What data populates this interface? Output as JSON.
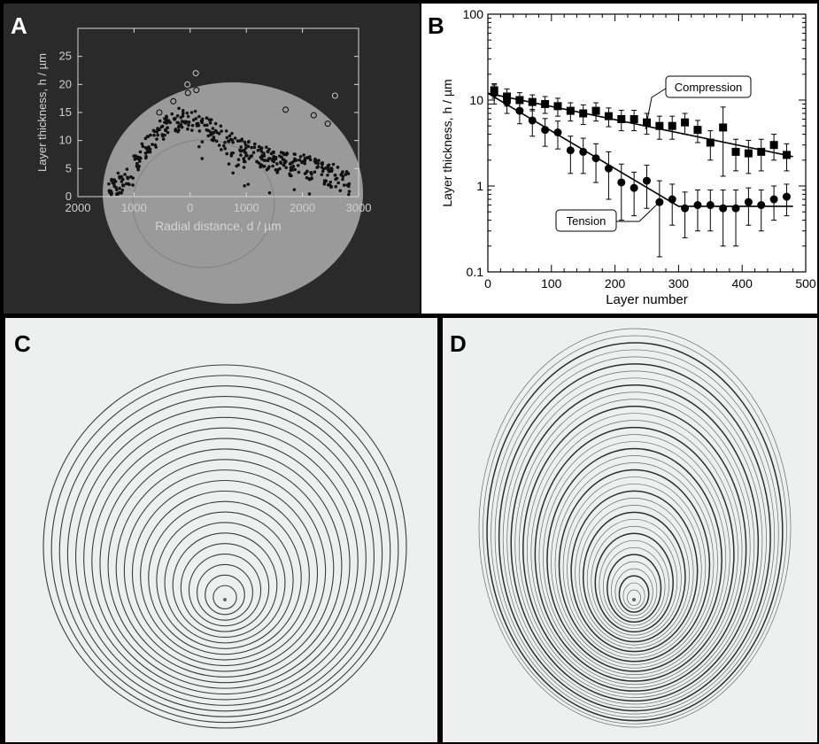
{
  "panels": {
    "a": {
      "letter": "A"
    },
    "b": {
      "letter": "B"
    },
    "c": {
      "letter": "C"
    },
    "d": {
      "letter": "D"
    }
  },
  "colors": {
    "panel_a_bg": "#2a2a2a",
    "panel_a_overlay": "#9a9a9a",
    "photo_bg": "#eef0ef",
    "ring": "#3c3c3c"
  },
  "chart_data": [
    {
      "type": "scatter",
      "panel": "A",
      "xlabel": "Radial distance, d / µm",
      "ylabel": "Layer thickness, h / µm",
      "xlim": [
        -2000,
        3000
      ],
      "ylim": [
        0,
        30
      ],
      "x_ticks": [
        -2000,
        -1000,
        0,
        1000,
        2000,
        3000
      ],
      "x_tick_labels": [
        "2000",
        "1000",
        "0",
        "1000",
        "2000",
        "3000"
      ],
      "y_ticks": [
        0,
        5,
        10,
        15,
        20,
        25
      ],
      "y_tick_labels": [
        "0",
        "5",
        "10",
        "15",
        "20",
        "25"
      ],
      "grid": false,
      "series": [
        {
          "marker": "filled",
          "trend": [
            [
              -1450,
              0.5
            ],
            [
              -1300,
              2
            ],
            [
              -1100,
              4
            ],
            [
              -900,
              7
            ],
            [
              -700,
              10
            ],
            [
              -500,
              12
            ],
            [
              -300,
              13
            ],
            [
              -150,
              14
            ],
            [
              0,
              13
            ],
            [
              200,
              13.5
            ],
            [
              400,
              12
            ],
            [
              600,
              10
            ],
            [
              800,
              9
            ],
            [
              1000,
              8
            ],
            [
              1300,
              7
            ],
            [
              1600,
              6
            ],
            [
              2000,
              5.5
            ],
            [
              2300,
              4.5
            ],
            [
              2600,
              3.5
            ],
            [
              2850,
              2
            ]
          ]
        },
        {
          "marker": "open",
          "points": [
            [
              -50,
              20
            ],
            [
              -40,
              18.5
            ],
            [
              100,
              22
            ],
            [
              110,
              19
            ],
            [
              2580,
              18
            ],
            [
              1700,
              15.5
            ],
            [
              -550,
              15
            ],
            [
              -300,
              17
            ],
            [
              2200,
              14.5
            ],
            [
              2450,
              13
            ]
          ]
        }
      ]
    },
    {
      "type": "scatter",
      "panel": "B",
      "xlabel": "Layer number",
      "ylabel": "Layer thickness, h / µm",
      "xlim": [
        0,
        500
      ],
      "ylim": [
        0.1,
        100
      ],
      "y_scale": "log",
      "x_ticks": [
        0,
        100,
        200,
        300,
        400,
        500
      ],
      "x_tick_labels": [
        "0",
        "100",
        "200",
        "300",
        "400",
        "500"
      ],
      "y_ticks": [
        0.1,
        1,
        10,
        100
      ],
      "y_tick_labels": [
        "0.1",
        "1",
        "10",
        "100"
      ],
      "grid": false,
      "annotations": [
        "Compression",
        "Tension"
      ],
      "series": [
        {
          "label": "Compression",
          "marker": "square",
          "x": [
            10,
            30,
            50,
            70,
            90,
            110,
            130,
            150,
            170,
            190,
            210,
            230,
            250,
            270,
            290,
            310,
            330,
            350,
            370,
            390,
            410,
            430,
            450,
            470
          ],
          "y": [
            13,
            11,
            10,
            9.5,
            9,
            8.5,
            7.5,
            7,
            7.5,
            6.5,
            6,
            6,
            5.5,
            5,
            5,
            5.5,
            4.5,
            3.2,
            4.8,
            2.5,
            2.4,
            2.5,
            3.0,
            2.3
          ],
          "err": [
            2.5,
            2.5,
            2.2,
            2,
            2,
            2,
            1.8,
            1.8,
            1.8,
            1.6,
            1.6,
            1.6,
            1.5,
            1.5,
            1.5,
            1.5,
            1.3,
            1.2,
            3.5,
            1.0,
            1.0,
            1.0,
            1.0,
            0.8
          ],
          "fit": [
            [
              0,
              12
            ],
            [
              480,
              2.2
            ]
          ]
        },
        {
          "label": "Tension",
          "marker": "circle",
          "x": [
            10,
            30,
            50,
            70,
            90,
            110,
            130,
            150,
            170,
            190,
            210,
            230,
            250,
            270,
            290,
            310,
            330,
            350,
            370,
            390,
            410,
            430,
            450,
            470
          ],
          "y": [
            12,
            9.5,
            7.5,
            5.8,
            4.5,
            4.2,
            2.6,
            2.5,
            2.1,
            1.6,
            1.1,
            0.95,
            1.15,
            0.65,
            0.7,
            0.55,
            0.6,
            0.6,
            0.55,
            0.55,
            0.65,
            0.6,
            0.7,
            0.75
          ],
          "err": [
            3,
            2.5,
            2.2,
            2,
            1.6,
            1.5,
            1.2,
            1.1,
            1.0,
            0.9,
            0.7,
            0.5,
            0.6,
            0.5,
            0.35,
            0.3,
            0.3,
            0.3,
            0.35,
            0.35,
            0.3,
            0.3,
            0.3,
            0.3
          ],
          "fit": [
            [
              0,
              12
            ],
            [
              300,
              0.58
            ],
            [
              480,
              0.58
            ]
          ]
        }
      ]
    }
  ]
}
